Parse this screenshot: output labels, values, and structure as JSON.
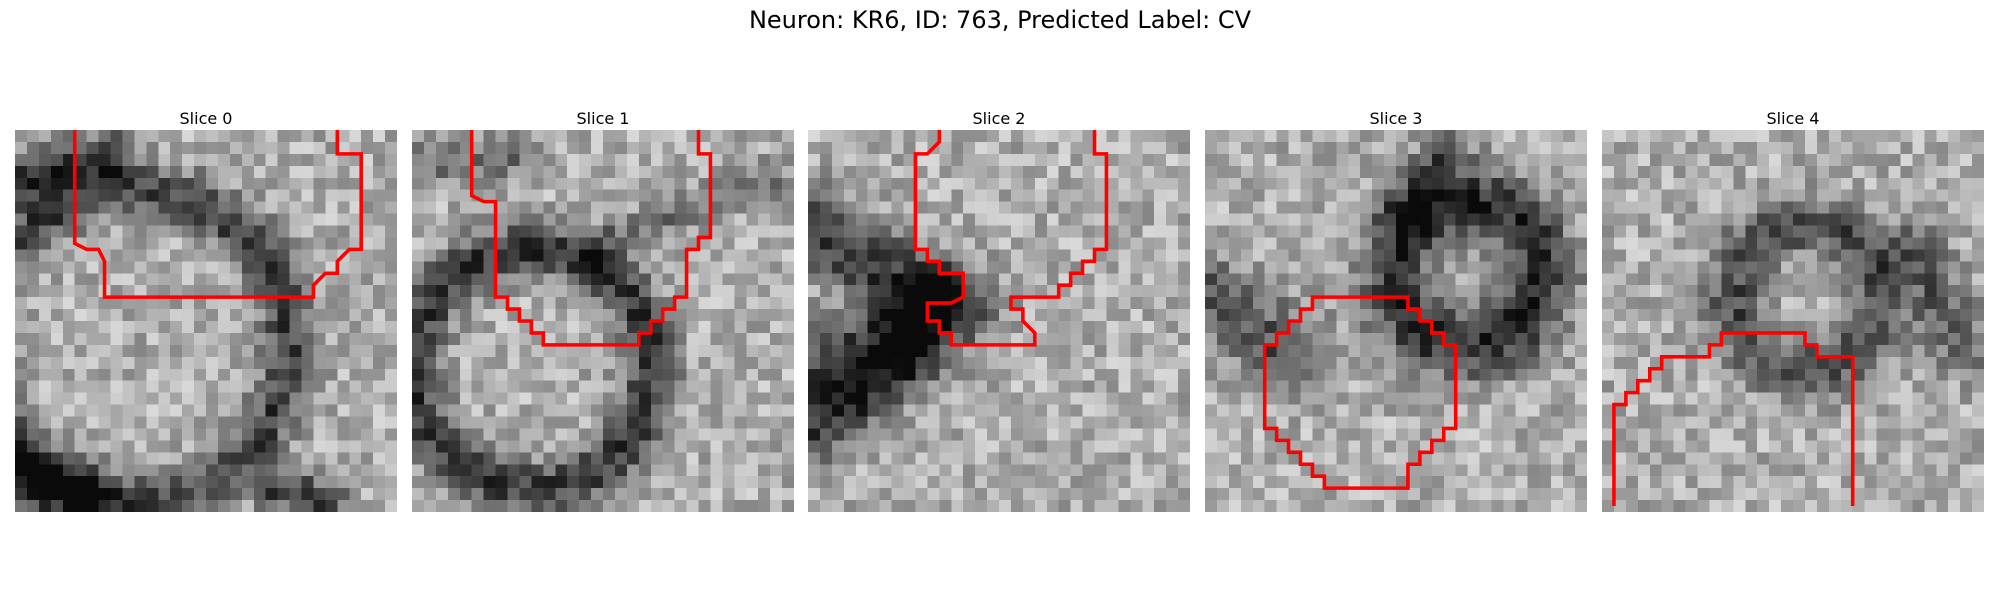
{
  "figure": {
    "title": "Neuron: KR6, ID: 763, Predicted Label: CV"
  },
  "panels": [
    {
      "title": "Slice 0",
      "mask_color": "#ff0000"
    },
    {
      "title": "Slice 1",
      "mask_color": "#ff0000"
    },
    {
      "title": "Slice 2",
      "mask_color": "#ff0000"
    },
    {
      "title": "Slice 3",
      "mask_color": "#ff0000"
    },
    {
      "title": "Slice 4",
      "mask_color": "#ff0000"
    }
  ]
}
